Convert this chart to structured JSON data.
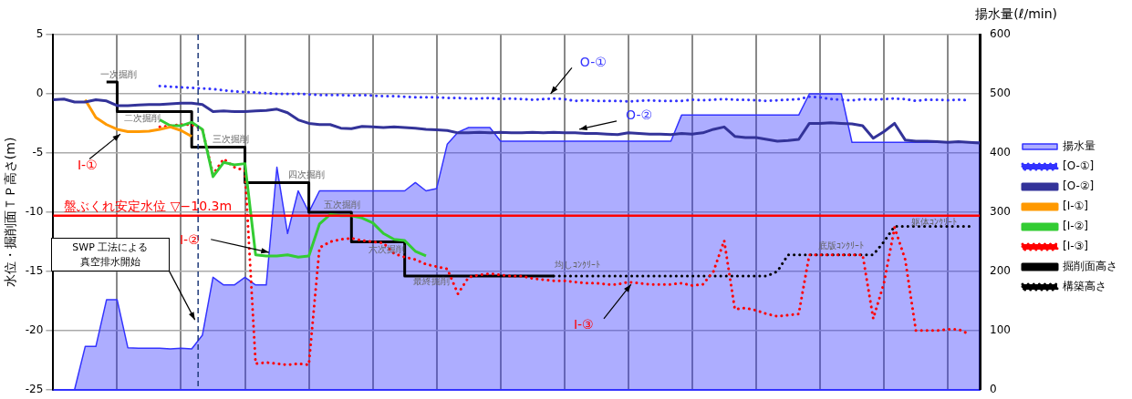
{
  "chart_data": {
    "type": "line",
    "ylabel": "水位・掘削面ＴＰ高さ(m)",
    "y2label": "揚水量(ℓ/min)",
    "categories": [
      null,
      null,
      null,
      null,
      null,
      null,
      null,
      null,
      null,
      null,
      null,
      null,
      null,
      null,
      null,
      null,
      null,
      null,
      null,
      null,
      null,
      null,
      null,
      null,
      null,
      null,
      null,
      null,
      null,
      null,
      null,
      null,
      null,
      null,
      null,
      null,
      null,
      null,
      null,
      null,
      null,
      null,
      null,
      null,
      null,
      null,
      null,
      null,
      null,
      null,
      null,
      null,
      null,
      null,
      null,
      null,
      null,
      null,
      null,
      null,
      null,
      null,
      null,
      null,
      null,
      null,
      null,
      null,
      null,
      null,
      null,
      null,
      null,
      null,
      null,
      null,
      null,
      null,
      null,
      null,
      null,
      null,
      null,
      null,
      null,
      null,
      null,
      null
    ],
    "ylim": [
      -25,
      5
    ],
    "yticks": [
      -25,
      -20,
      -15,
      -10,
      -5,
      0,
      5
    ],
    "y2lim": [
      0,
      600
    ],
    "y2ticks": [
      0,
      100,
      200,
      300,
      400,
      500,
      600
    ],
    "grid": true,
    "legend": "right",
    "marker": "none",
    "series": [
      {
        "name": "揚水量",
        "type": "area",
        "axis": "y2",
        "color": "#3333ff",
        "values": [
          0,
          0,
          0,
          73,
          73,
          152,
          152,
          71,
          70,
          70,
          70,
          69,
          70,
          69,
          92,
          190,
          177,
          177,
          190,
          177,
          177,
          376,
          264,
          336,
          300,
          336,
          336,
          336,
          336,
          336,
          336,
          336,
          336,
          336,
          350,
          336,
          340,
          415,
          435,
          443,
          443,
          443,
          420,
          420,
          420,
          420,
          420,
          420,
          420,
          420,
          420,
          420,
          420,
          420,
          420,
          420,
          420,
          420,
          420,
          464,
          464,
          464,
          464,
          464,
          464,
          464,
          464,
          464,
          464,
          464,
          464,
          500,
          500,
          500,
          500,
          418,
          418,
          418,
          418,
          418,
          418,
          418,
          418,
          418,
          418,
          418,
          418,
          418
        ]
      },
      {
        "name": "[O-①]",
        "color": "#3333ff",
        "line_style": "dotted",
        "values": [
          null,
          null,
          null,
          null,
          null,
          null,
          null,
          null,
          null,
          null,
          0.66,
          0.6,
          0.55,
          0.5,
          0.45,
          0.4,
          0.3,
          0.2,
          0.15,
          0.1,
          0.05,
          0.0,
          0.0,
          0.0,
          -0.05,
          -0.1,
          -0.1,
          -0.1,
          -0.15,
          -0.1,
          -0.15,
          -0.2,
          -0.2,
          -0.25,
          -0.3,
          -0.3,
          -0.3,
          -0.35,
          -0.35,
          -0.4,
          -0.4,
          -0.35,
          -0.45,
          -0.4,
          -0.45,
          -0.5,
          -0.45,
          -0.4,
          -0.45,
          -0.6,
          -0.55,
          -0.6,
          -0.6,
          -0.6,
          -0.65,
          -0.6,
          -0.55,
          -0.6,
          -0.6,
          -0.6,
          -0.5,
          -0.55,
          -0.5,
          -0.45,
          -0.5,
          -0.5,
          -0.55,
          -0.6,
          -0.55,
          -0.5,
          -0.45,
          -0.25,
          -0.3,
          -0.45,
          -0.5,
          -0.55,
          -0.45,
          -0.5,
          -0.45,
          -0.4,
          -0.45,
          -0.6,
          -0.5,
          -0.5,
          -0.55,
          -0.5,
          -0.55,
          null
        ]
      },
      {
        "name": "[O-②]",
        "color": "#333399",
        "line_style": "solid",
        "values": [
          -0.5,
          -0.45,
          -0.7,
          -0.7,
          -0.5,
          -0.6,
          -1.0,
          -1.0,
          -0.95,
          -0.9,
          -0.9,
          -0.85,
          -0.8,
          -0.8,
          -0.9,
          -1.5,
          -1.45,
          -1.5,
          -1.5,
          -1.45,
          -1.4,
          -1.3,
          -1.6,
          -2.2,
          -2.5,
          -2.6,
          -2.6,
          -2.9,
          -2.95,
          -2.75,
          -2.8,
          -2.85,
          -2.8,
          -2.85,
          -2.9,
          -3.0,
          -3.05,
          -3.1,
          -3.3,
          -3.3,
          -3.25,
          -3.3,
          -3.25,
          -3.3,
          -3.3,
          -3.25,
          -3.3,
          -3.25,
          -3.3,
          -3.3,
          -3.35,
          -3.35,
          -3.4,
          -3.45,
          -3.3,
          -3.35,
          -3.4,
          -3.4,
          -3.45,
          -3.35,
          -3.4,
          -3.3,
          -3.0,
          -2.8,
          -3.6,
          -3.7,
          -3.7,
          -3.85,
          -4.0,
          -3.95,
          -3.85,
          -2.5,
          -2.5,
          -2.45,
          -2.5,
          -2.55,
          -2.7,
          -3.75,
          -3.2,
          -2.5,
          -3.9,
          -4.0,
          -4.0,
          -4.05,
          -4.1,
          -4.05,
          -4.1,
          -4.15
        ]
      },
      {
        "name": "[I-①]",
        "color": "#ff9900",
        "line_style": "solid",
        "values": [
          null,
          null,
          null,
          -0.5,
          -2.0,
          -2.6,
          -3.0,
          -3.2,
          -3.2,
          -3.15,
          -3.0,
          -2.8,
          -3.1,
          -3.6,
          null,
          null,
          null,
          null,
          null,
          null,
          null,
          null,
          null,
          null,
          null,
          null,
          null,
          null,
          null,
          null,
          null,
          null,
          null,
          null,
          null,
          null,
          null,
          null,
          null,
          null,
          null,
          null,
          null,
          null,
          null,
          null,
          null,
          null,
          null,
          null,
          null,
          null,
          null,
          null,
          null,
          null,
          null,
          null,
          null,
          null,
          null,
          null,
          null,
          null,
          null,
          null,
          null,
          null,
          null,
          null,
          null,
          null,
          null,
          null,
          null,
          null,
          null,
          null,
          null,
          null,
          null,
          null,
          null,
          null,
          null,
          null,
          null,
          null
        ]
      },
      {
        "name": "[I-②]",
        "color": "#33cc33",
        "line_style": "solid",
        "values": [
          null,
          null,
          null,
          null,
          null,
          null,
          null,
          null,
          null,
          null,
          -2.2,
          -2.7,
          -2.7,
          -2.4,
          -3.0,
          -7.0,
          -5.8,
          -6.0,
          -5.9,
          -13.6,
          -13.7,
          -13.7,
          -13.6,
          -13.8,
          -13.7,
          -11.0,
          -10.2,
          -10.3,
          -10.3,
          -10.5,
          -10.9,
          -11.8,
          -12.3,
          -12.4,
          -13.3,
          -13.7,
          null,
          null,
          null,
          null,
          null,
          null,
          null,
          null,
          null,
          null,
          null,
          null,
          null,
          null,
          null,
          null,
          null,
          null,
          null,
          null,
          null,
          null,
          null,
          null,
          null,
          null,
          null,
          null,
          null,
          null,
          null,
          null,
          null,
          null,
          null,
          null,
          null,
          null,
          null,
          null,
          null,
          null,
          null,
          null,
          null,
          null,
          null,
          null,
          null,
          null,
          null,
          null
        ]
      },
      {
        "name": "[I-③]",
        "color": "#ff0000",
        "line_style": "dotted",
        "values": [
          null,
          null,
          null,
          null,
          null,
          null,
          null,
          null,
          null,
          null,
          -2.8,
          -2.7,
          -2.6,
          -2.6,
          -3.0,
          -6.8,
          -5.5,
          -6.2,
          -6.5,
          -22.8,
          -22.7,
          -22.8,
          -22.9,
          -22.8,
          -22.9,
          -13.0,
          -12.5,
          -12.3,
          -12.2,
          -12.4,
          -12.5,
          -12.6,
          -13.5,
          -13.8,
          -14.0,
          -14.4,
          -14.6,
          -14.8,
          -16.9,
          -15.5,
          -15.3,
          -15.2,
          -15.3,
          -15.4,
          -15.4,
          -15.6,
          -15.7,
          -15.8,
          -15.8,
          -15.9,
          -16.0,
          -16.0,
          -16.1,
          -16.1,
          -15.9,
          -16.0,
          -16.1,
          -16.1,
          -16.1,
          -16.0,
          -16.2,
          -16.1,
          -15.0,
          -12.4,
          -18.2,
          -18.1,
          -18.3,
          -18.6,
          -18.8,
          -18.7,
          -18.6,
          -13.6,
          -13.6,
          -13.6,
          -13.6,
          -13.6,
          -13.6,
          -19.0,
          -16.0,
          -11.3,
          -14.0,
          -20.0,
          -20.0,
          -20.0,
          -19.9,
          -19.9,
          -20.3,
          null
        ]
      },
      {
        "name": "掘削面高さ",
        "type": "step",
        "color": "#000000",
        "line_style": "solid",
        "values": [
          null,
          null,
          null,
          null,
          null,
          1.0,
          1.0,
          -1.5,
          -1.5,
          -1.5,
          -1.5,
          -1.5,
          -1.5,
          -1.5,
          -4.5,
          -4.5,
          -4.5,
          -4.5,
          -4.5,
          -7.5,
          -7.5,
          -7.5,
          -7.5,
          -7.5,
          -7.5,
          -10,
          -10,
          -10,
          -10,
          -12.5,
          -12.5,
          -12.5,
          -12.5,
          -12.5,
          -15.4,
          -15.4,
          -15.4,
          -15.4,
          -15.4,
          -15.4,
          -15.4,
          -15.4,
          -15.4,
          -15.4,
          -15.4,
          -15.4,
          -15.4,
          -15.4,
          null,
          null,
          null,
          null,
          null,
          null,
          null,
          null,
          null,
          null,
          null,
          null,
          null,
          null,
          null,
          null,
          null,
          null,
          null,
          null,
          null,
          null,
          null,
          null,
          null,
          null,
          null,
          null,
          null,
          null,
          null,
          null,
          null,
          null,
          null,
          null,
          null,
          null,
          null,
          null
        ]
      },
      {
        "name": "構築高さ",
        "color": "#000000",
        "line_style": "dotted",
        "values": [
          null,
          null,
          null,
          null,
          null,
          null,
          null,
          null,
          null,
          null,
          null,
          null,
          null,
          null,
          null,
          null,
          null,
          null,
          null,
          null,
          null,
          null,
          null,
          null,
          null,
          null,
          null,
          null,
          null,
          null,
          null,
          null,
          null,
          null,
          null,
          null,
          null,
          null,
          null,
          null,
          null,
          null,
          null,
          null,
          null,
          null,
          null,
          -15.4,
          -15.4,
          -15.4,
          -15.4,
          -15.4,
          -15.4,
          -15.4,
          -15.4,
          -15.4,
          -15.4,
          -15.4,
          -15.4,
          -15.4,
          -15.4,
          -15.4,
          -15.4,
          -15.4,
          -15.4,
          -15.4,
          -15.4,
          -15.4,
          -15.0,
          -13.6,
          -13.6,
          -13.6,
          -13.6,
          -13.6,
          -13.6,
          -13.6,
          -13.6,
          -13.6,
          -12.5,
          -11.2,
          -11.2,
          -11.2,
          -11.2,
          -11.2,
          -11.2,
          -11.2,
          -11.2,
          null
        ]
      }
    ],
    "ref_lines": [
      {
        "axis": "y",
        "value": -10.3,
        "label": "盤ぶくれ安定水位 ▽−10.3m",
        "color": "#ff0000",
        "line_style": "solid"
      }
    ],
    "annotations": [
      "I-①",
      "I-②",
      "I-③",
      "O-①",
      "O-②",
      "SWP 工法による真空排水開始",
      "一次掘削",
      "二次掘削",
      "三次掘削",
      "四次掘削",
      "五次掘削",
      "六次掘削",
      "最終掘削",
      "均しｺﾝｸﾘｰﾄ",
      "底版ｺﾝｸﾘｰﾄ",
      "躯体ｺﾝｸﾘｰﾄ"
    ]
  }
}
